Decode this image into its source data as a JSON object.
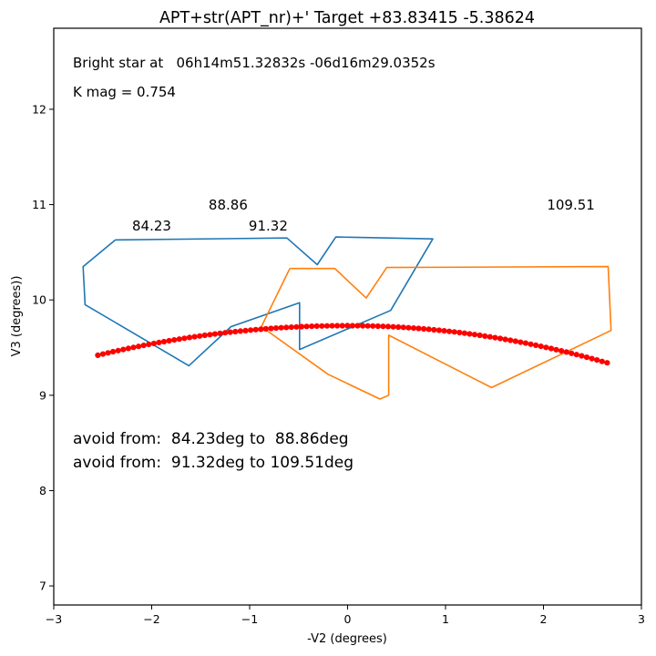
{
  "chart_data": {
    "type": "line",
    "title": "APT+str(APT_nr)+' Target +83.83415  -5.38624",
    "xlabel": "-V2 (degrees)",
    "ylabel": "V3 (degrees))",
    "xlim": [
      -3,
      3
    ],
    "ylim": [
      6.8,
      12.85
    ],
    "x_ticks": [
      -3,
      -2,
      -1,
      0,
      1,
      2,
      3
    ],
    "x_tick_labels": [
      "−3",
      "−2",
      "−1",
      "0",
      "1",
      "2",
      "3"
    ],
    "y_ticks": [
      7,
      8,
      9,
      10,
      11,
      12
    ],
    "y_tick_labels": [
      "7",
      "8",
      "9",
      "10",
      "11",
      "12"
    ],
    "grid": false,
    "colors": {
      "series1": "#1f77b4",
      "series2": "#ff7f0e",
      "track": "#ff0000"
    },
    "series": [
      {
        "color": "#1f77b4",
        "x": [
          -2.37,
          -0.62,
          -0.31,
          -0.12,
          0.87,
          0.44,
          -0.49,
          -0.49,
          -1.19,
          -1.62,
          -2.68,
          -2.7,
          -2.37
        ],
        "y": [
          10.63,
          10.65,
          10.37,
          10.66,
          10.64,
          9.89,
          9.48,
          9.97,
          9.72,
          9.31,
          9.95,
          10.35,
          10.63
        ]
      },
      {
        "color": "#ff7f0e",
        "x": [
          -0.59,
          -0.13,
          0.19,
          0.4,
          2.66,
          2.69,
          1.47,
          0.42,
          0.42,
          0.33,
          -0.2,
          -0.88,
          -0.59
        ],
        "y": [
          10.33,
          10.33,
          10.02,
          10.34,
          10.35,
          9.68,
          9.08,
          9.63,
          9.0,
          8.96,
          9.22,
          9.72,
          10.33
        ]
      }
    ],
    "track": {
      "marker": "dot",
      "color": "#ff0000",
      "x_start": -2.55,
      "x_end": 2.65,
      "count": 101,
      "y_peak": 9.73,
      "y_at_ends": [
        9.42,
        9.34
      ]
    },
    "angle_labels": [
      {
        "text": "84.23",
        "x": -2.0,
        "y": 10.73
      },
      {
        "text": "88.86",
        "x": -1.22,
        "y": 10.95
      },
      {
        "text": "91.32",
        "x": -0.81,
        "y": 10.73
      },
      {
        "text": "109.51",
        "x": 2.28,
        "y": 10.95
      }
    ],
    "annotations": [
      {
        "text": "Bright star at   06h14m51.32832s -06d16m29.0352s"
      },
      {
        "text": "K mag = 0.754"
      },
      {
        "text": "avoid from:  84.23deg to  88.86deg"
      },
      {
        "text": "avoid from:  91.32deg to 109.51deg"
      }
    ]
  }
}
